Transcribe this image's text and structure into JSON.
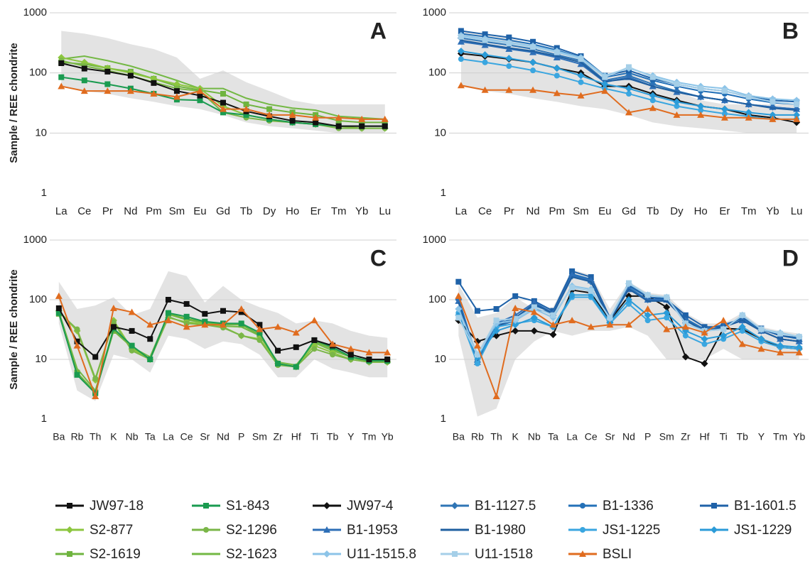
{
  "chart_data": [
    {
      "type": "line",
      "label": "A",
      "ylabel": "Sample / REE chondrite",
      "log_scale": true,
      "grid": true,
      "categories": [
        "La",
        "Ce",
        "Pr",
        "Nd",
        "Pm",
        "Sm",
        "Eu",
        "Gd",
        "Tb",
        "Dy",
        "Ho",
        "Er",
        "Tm",
        "Yb",
        "Lu"
      ],
      "ylim": [
        1,
        1000
      ],
      "yticks": [
        1,
        10,
        100,
        1000
      ],
      "envelope": {
        "color": "#e3e3e3",
        "upper": [
          500,
          450,
          380,
          300,
          250,
          180,
          80,
          110,
          70,
          50,
          35,
          30,
          30,
          30,
          30
        ],
        "lower": [
          60,
          50,
          45,
          38,
          33,
          28,
          25,
          20,
          15,
          13,
          12,
          11,
          10,
          10,
          10
        ]
      },
      "series": [
        {
          "name": "S2-1623",
          "color": "#73b844",
          "marker": "none",
          "values": [
            170,
            190,
            160,
            130,
            100,
            75,
            55,
            55,
            38,
            30,
            26,
            24,
            19,
            18,
            17
          ]
        },
        {
          "name": "S2-1619",
          "color": "#6fb43f",
          "marker": "square",
          "values": [
            150,
            140,
            120,
            105,
            80,
            60,
            52,
            45,
            30,
            25,
            22,
            20,
            16,
            15,
            15
          ]
        },
        {
          "name": "S2-877",
          "color": "#8cc63f",
          "marker": "diamond",
          "values": [
            180,
            150,
            120,
            100,
            80,
            65,
            55,
            28,
            20,
            17,
            15,
            14,
            13,
            12,
            12
          ]
        },
        {
          "name": "S2-1296",
          "color": "#7ab648",
          "marker": "circle",
          "values": [
            160,
            130,
            110,
            90,
            70,
            55,
            50,
            22,
            18,
            16,
            15,
            14,
            12,
            12,
            12
          ]
        },
        {
          "name": "S1-843",
          "color": "#1a9b50",
          "marker": "square",
          "values": [
            85,
            75,
            65,
            55,
            45,
            36,
            35,
            22,
            20,
            17,
            15,
            14,
            13,
            13,
            13
          ]
        },
        {
          "name": "JW97-18",
          "color": "#111111",
          "marker": "square",
          "values": [
            145,
            118,
            105,
            90,
            68,
            50,
            42,
            32,
            23,
            19,
            16,
            15,
            13,
            13,
            13
          ]
        },
        {
          "name": "BSLI",
          "color": "#e06c1f",
          "marker": "triangle",
          "values": [
            60,
            50,
            50,
            50,
            45,
            40,
            50,
            25,
            25,
            20,
            20,
            18,
            18,
            17,
            17
          ]
        }
      ]
    },
    {
      "type": "line",
      "label": "B",
      "log_scale": true,
      "grid": true,
      "categories": [
        "La",
        "Ce",
        "Pr",
        "Nd",
        "Pm",
        "Sm",
        "Eu",
        "Gd",
        "Tb",
        "Dy",
        "Ho",
        "Er",
        "Tm",
        "Yb",
        "Lu"
      ],
      "ylim": [
        1,
        1000
      ],
      "yticks": [
        1,
        10,
        100,
        1000
      ],
      "envelope": {
        "color": "#e3e3e3",
        "upper": [
          500,
          450,
          380,
          300,
          250,
          180,
          80,
          110,
          70,
          50,
          35,
          30,
          30,
          30,
          30
        ],
        "lower": [
          60,
          50,
          45,
          38,
          33,
          28,
          25,
          20,
          15,
          13,
          12,
          11,
          10,
          10,
          10
        ]
      },
      "series": [
        {
          "name": "JW97-4",
          "color": "#111111",
          "marker": "diamond",
          "values": [
            210,
            190,
            170,
            150,
            120,
            100,
            60,
            60,
            45,
            35,
            28,
            25,
            20,
            18,
            15
          ]
        },
        {
          "name": "B1-1127.5",
          "color": "#2f75b5",
          "marker": "diamond",
          "values": [
            380,
            330,
            290,
            250,
            200,
            160,
            75,
            90,
            65,
            50,
            40,
            35,
            30,
            27,
            25
          ]
        },
        {
          "name": "B1-1336",
          "color": "#2471b8",
          "marker": "circle",
          "values": [
            450,
            400,
            350,
            300,
            240,
            180,
            85,
            100,
            75,
            60,
            50,
            45,
            37,
            32,
            30
          ]
        },
        {
          "name": "B1-1601.5",
          "color": "#1f62a8",
          "marker": "square",
          "values": [
            500,
            440,
            390,
            330,
            260,
            190,
            90,
            110,
            80,
            65,
            55,
            50,
            40,
            35,
            33
          ]
        },
        {
          "name": "B1-1953",
          "color": "#2e6fb7",
          "marker": "triangle",
          "values": [
            330,
            290,
            250,
            220,
            180,
            140,
            70,
            85,
            60,
            48,
            40,
            35,
            30,
            27,
            25
          ]
        },
        {
          "name": "B1-1980",
          "color": "#1f5fa0",
          "marker": "none",
          "values": [
            350,
            300,
            260,
            230,
            190,
            150,
            72,
            80,
            60,
            48,
            40,
            35,
            30,
            26,
            24
          ]
        },
        {
          "name": "JS1-1225",
          "color": "#3aa6e0",
          "marker": "circle",
          "values": [
            170,
            150,
            130,
            110,
            90,
            70,
            55,
            45,
            35,
            28,
            24,
            21,
            19,
            17,
            17
          ]
        },
        {
          "name": "JS1-1229",
          "color": "#2b9bd8",
          "marker": "diamond",
          "values": [
            230,
            200,
            175,
            150,
            120,
            90,
            65,
            55,
            42,
            33,
            28,
            25,
            22,
            20,
            20
          ]
        },
        {
          "name": "U11-1515.8",
          "color": "#8cc4e8",
          "marker": "diamond",
          "values": [
            420,
            370,
            320,
            280,
            230,
            180,
            90,
            120,
            90,
            70,
            60,
            55,
            42,
            37,
            35
          ]
        },
        {
          "name": "U11-1518",
          "color": "#a5cfe8",
          "marker": "square",
          "values": [
            400,
            350,
            310,
            270,
            220,
            170,
            85,
            125,
            85,
            65,
            55,
            50,
            40,
            33,
            30
          ]
        },
        {
          "name": "BSLI",
          "color": "#e06c1f",
          "marker": "triangle",
          "values": [
            62,
            52,
            52,
            52,
            46,
            42,
            50,
            22,
            26,
            20,
            20,
            18,
            18,
            17,
            17
          ]
        }
      ]
    },
    {
      "type": "line",
      "label": "C",
      "ylabel": "Sample / REE chondrite",
      "log_scale": true,
      "grid": true,
      "categories": [
        "Ba",
        "Rb",
        "Th",
        "K",
        "Nb",
        "Ta",
        "La",
        "Ce",
        "Sr",
        "Nd",
        "P",
        "Sm",
        "Zr",
        "Hf",
        "Ti",
        "Tb",
        "Y",
        "Tm",
        "Yb"
      ],
      "ylim": [
        1,
        1000
      ],
      "yticks": [
        1,
        10,
        100,
        1000
      ],
      "envelope": {
        "color": "#e3e3e3",
        "upper": [
          200,
          70,
          80,
          110,
          55,
          70,
          300,
          250,
          90,
          170,
          100,
          75,
          60,
          40,
          45,
          40,
          30,
          25,
          23
        ],
        "lower": [
          40,
          3,
          2,
          12,
          10,
          6,
          25,
          22,
          15,
          20,
          18,
          12,
          5,
          5,
          10,
          7,
          6,
          5,
          5
        ]
      },
      "series": [
        {
          "name": "S2-1623",
          "color": "#73b844",
          "marker": "none",
          "values": [
            63,
            7,
            3,
            32,
            16,
            11,
            57,
            46,
            41,
            36,
            35,
            25,
            9,
            8,
            19,
            14,
            11,
            9,
            9
          ]
        },
        {
          "name": "S2-1619",
          "color": "#6fb43f",
          "marker": "square",
          "values": [
            58,
            6,
            2.8,
            30,
            16,
            10,
            58,
            48,
            42,
            38,
            38,
            26,
            8.5,
            7.5,
            20,
            15,
            11,
            9.5,
            9.5
          ]
        },
        {
          "name": "S2-877",
          "color": "#8cc63f",
          "marker": "diamond",
          "values": [
            65,
            30,
            4.5,
            45,
            15,
            10,
            50,
            42,
            40,
            35,
            25,
            22,
            8.5,
            7.5,
            17,
            13,
            10,
            9,
            9
          ]
        },
        {
          "name": "S2-1296",
          "color": "#7ab648",
          "marker": "circle",
          "values": [
            62,
            32,
            4.8,
            42,
            14,
            10,
            52,
            40,
            38,
            34,
            25,
            21,
            8,
            7.5,
            15,
            12,
            10,
            9,
            9
          ]
        },
        {
          "name": "S1-843",
          "color": "#1a9b50",
          "marker": "square",
          "values": [
            60,
            5.5,
            2.7,
            33,
            17,
            10,
            60,
            52,
            43,
            40,
            40,
            28,
            8.5,
            7.5,
            21,
            16,
            11,
            9.5,
            9.5
          ]
        },
        {
          "name": "JW97-18",
          "color": "#111111",
          "marker": "square",
          "values": [
            72,
            20,
            11,
            35,
            30,
            22,
            100,
            85,
            58,
            65,
            62,
            38,
            14,
            16,
            21,
            17,
            12,
            10,
            10
          ]
        },
        {
          "name": "BSLI",
          "color": "#e06c1f",
          "marker": "triangle",
          "values": [
            115,
            17,
            2.4,
            72,
            62,
            38,
            45,
            35,
            38,
            38,
            70,
            32,
            35,
            28,
            45,
            18,
            15,
            13,
            13
          ]
        }
      ]
    },
    {
      "type": "line",
      "label": "D",
      "log_scale": true,
      "grid": true,
      "categories": [
        "Ba",
        "Rb",
        "Th",
        "K",
        "Nb",
        "Ta",
        "La",
        "Ce",
        "Sr",
        "Nd",
        "P",
        "Sm",
        "Zr",
        "Hf",
        "Ti",
        "Tb",
        "Y",
        "Tm",
        "Yb"
      ],
      "ylim": [
        1,
        1000
      ],
      "yticks": [
        1,
        10,
        100,
        1000
      ],
      "envelope": {
        "color": "#e3e3e3",
        "upper": [
          180,
          50,
          60,
          110,
          70,
          75,
          320,
          260,
          70,
          200,
          130,
          120,
          60,
          40,
          40,
          60,
          35,
          30,
          27
        ],
        "lower": [
          25,
          1.1,
          1.5,
          10,
          20,
          30,
          25,
          30,
          30,
          35,
          25,
          10,
          10,
          10,
          15,
          10,
          10,
          10,
          10
        ]
      },
      "series": [
        {
          "name": "JW97-4",
          "color": "#111111",
          "marker": "diamond",
          "values": [
            45,
            20,
            25,
            30,
            30,
            26,
            145,
            130,
            45,
            115,
            115,
            75,
            11,
            8.5,
            33,
            32,
            22,
            16,
            15
          ]
        },
        {
          "name": "B1-1127.5",
          "color": "#2f75b5",
          "marker": "diamond",
          "values": [
            100,
            9,
            35,
            45,
            70,
            60,
            250,
            200,
            45,
            160,
            100,
            100,
            45,
            30,
            35,
            45,
            30,
            22,
            20
          ]
        },
        {
          "name": "B1-1336",
          "color": "#2471b8",
          "marker": "circle",
          "values": [
            105,
            10,
            38,
            50,
            80,
            62,
            270,
            220,
            48,
            170,
            110,
            105,
            48,
            32,
            38,
            48,
            32,
            25,
            22
          ]
        },
        {
          "name": "B1-1601.5",
          "color": "#1f62a8",
          "marker": "square",
          "values": [
            200,
            65,
            70,
            115,
            95,
            65,
            300,
            240,
            50,
            180,
            110,
            100,
            55,
            35,
            35,
            50,
            33,
            25,
            23
          ]
        },
        {
          "name": "B1-1953",
          "color": "#2e6fb7",
          "marker": "triangle",
          "values": [
            95,
            9,
            40,
            55,
            90,
            60,
            260,
            210,
            45,
            150,
            100,
            100,
            45,
            30,
            35,
            45,
            30,
            22,
            20
          ]
        },
        {
          "name": "B1-1980",
          "color": "#1f5fa0",
          "marker": "none",
          "values": [
            90,
            9,
            35,
            50,
            85,
            58,
            240,
            200,
            45,
            150,
            95,
            95,
            45,
            30,
            35,
            45,
            30,
            22,
            20
          ]
        },
        {
          "name": "JS1-1225",
          "color": "#3aa6e0",
          "marker": "circle",
          "values": [
            60,
            8.5,
            35,
            40,
            45,
            35,
            110,
            110,
            40,
            85,
            45,
            50,
            25,
            18,
            22,
            30,
            20,
            16,
            15
          ]
        },
        {
          "name": "JS1-1229",
          "color": "#2b9bd8",
          "marker": "diamond",
          "values": [
            55,
            11,
            30,
            38,
            50,
            35,
            120,
            120,
            42,
            100,
            55,
            60,
            30,
            22,
            25,
            35,
            22,
            17,
            16
          ]
        },
        {
          "name": "U11-1515.8",
          "color": "#8cc4e8",
          "marker": "diamond",
          "values": [
            70,
            12,
            40,
            45,
            70,
            50,
            170,
            150,
            48,
            185,
            120,
            110,
            40,
            30,
            32,
            55,
            32,
            28,
            24
          ]
        },
        {
          "name": "U11-1518",
          "color": "#a5cfe8",
          "marker": "square",
          "values": [
            50,
            12,
            45,
            48,
            75,
            55,
            160,
            140,
            50,
            190,
            120,
            110,
            40,
            30,
            32,
            55,
            32,
            27,
            24
          ]
        },
        {
          "name": "BSLI",
          "color": "#e06c1f",
          "marker": "triangle",
          "values": [
            115,
            17,
            2.4,
            72,
            62,
            38,
            45,
            35,
            38,
            38,
            70,
            32,
            35,
            28,
            45,
            18,
            15,
            13,
            13
          ]
        }
      ]
    }
  ]
}
